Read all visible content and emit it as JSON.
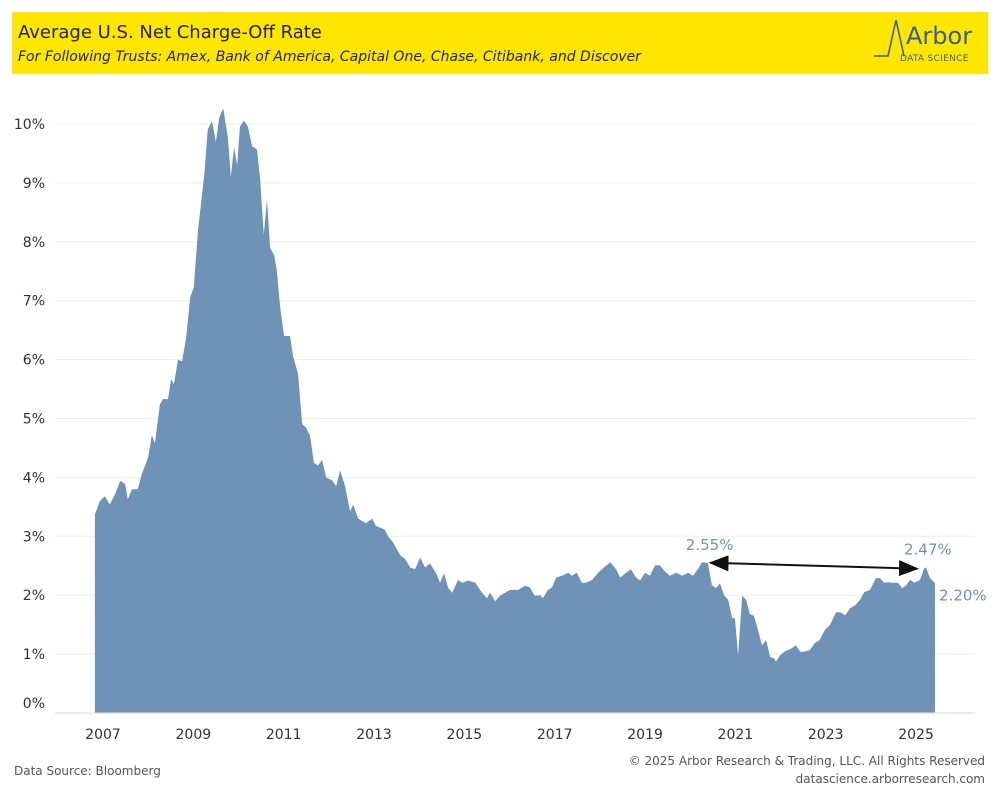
{
  "header": {
    "title": "Average U.S. Net Charge-Off Rate",
    "subtitle": "For Following Trusts: Amex, Bank of America, Capital One, Chase, Citibank, and Discover",
    "logo_text": "Arbor",
    "logo_sub": "DATA SCIENCE"
  },
  "footer": {
    "source": "Data Source: Bloomberg",
    "copyright": "© 2025 Arbor Research & Trading, LLC. All Rights Reserved",
    "url": "datascience.arborresearch.com"
  },
  "colors": {
    "area": "#6f93b6",
    "header": "#ffe600",
    "annotation": "#6f93b6",
    "logo": "#3a5f9a"
  },
  "chart_data": {
    "type": "area",
    "title": "Average U.S. Net Charge-Off Rate",
    "xlabel": "",
    "ylabel": "",
    "xlim": [
      2006.6,
      2025.8
    ],
    "ylim": [
      0,
      10.5
    ],
    "grid": true,
    "legend": "none",
    "x_ticks": [
      "2007",
      "2009",
      "2011",
      "2013",
      "2015",
      "2017",
      "2019",
      "2021",
      "2023",
      "2025"
    ],
    "y_ticks": [
      "0%",
      "1%",
      "2%",
      "3%",
      "4%",
      "5%",
      "6%",
      "7%",
      "8%",
      "9%",
      "10%"
    ],
    "points": [
      [
        2006.82,
        3.37
      ],
      [
        2006.93,
        3.6
      ],
      [
        2007.04,
        3.68
      ],
      [
        2007.15,
        3.54
      ],
      [
        2007.27,
        3.72
      ],
      [
        2007.38,
        3.94
      ],
      [
        2007.49,
        3.89
      ],
      [
        2007.55,
        3.63
      ],
      [
        2007.64,
        3.8
      ],
      [
        2007.77,
        3.8
      ],
      [
        2007.86,
        4.06
      ],
      [
        2008.0,
        4.34
      ],
      [
        2008.08,
        4.72
      ],
      [
        2008.15,
        4.58
      ],
      [
        2008.26,
        5.24
      ],
      [
        2008.33,
        5.33
      ],
      [
        2008.44,
        5.33
      ],
      [
        2008.51,
        5.67
      ],
      [
        2008.57,
        5.58
      ],
      [
        2008.66,
        6.0
      ],
      [
        2008.75,
        5.97
      ],
      [
        2008.84,
        6.36
      ],
      [
        2008.93,
        7.06
      ],
      [
        2009.01,
        7.23
      ],
      [
        2009.1,
        8.18
      ],
      [
        2009.24,
        9.13
      ],
      [
        2009.32,
        9.91
      ],
      [
        2009.41,
        10.05
      ],
      [
        2009.5,
        9.7
      ],
      [
        2009.57,
        10.1
      ],
      [
        2009.66,
        10.27
      ],
      [
        2009.77,
        9.74
      ],
      [
        2009.83,
        9.1
      ],
      [
        2009.9,
        9.6
      ],
      [
        2009.97,
        9.3
      ],
      [
        2010.03,
        9.95
      ],
      [
        2010.12,
        10.06
      ],
      [
        2010.21,
        9.95
      ],
      [
        2010.3,
        9.62
      ],
      [
        2010.41,
        9.57
      ],
      [
        2010.48,
        9.05
      ],
      [
        2010.56,
        8.12
      ],
      [
        2010.63,
        8.72
      ],
      [
        2010.7,
        7.9
      ],
      [
        2010.79,
        7.77
      ],
      [
        2010.85,
        7.5
      ],
      [
        2010.92,
        6.9
      ],
      [
        2011.01,
        6.4
      ],
      [
        2011.14,
        6.4
      ],
      [
        2011.21,
        6.05
      ],
      [
        2011.32,
        5.75
      ],
      [
        2011.41,
        4.9
      ],
      [
        2011.49,
        4.85
      ],
      [
        2011.58,
        4.72
      ],
      [
        2011.67,
        4.25
      ],
      [
        2011.76,
        4.2
      ],
      [
        2011.85,
        4.3
      ],
      [
        2011.94,
        4.0
      ],
      [
        2012.07,
        3.95
      ],
      [
        2012.16,
        3.85
      ],
      [
        2012.25,
        4.12
      ],
      [
        2012.36,
        3.85
      ],
      [
        2012.47,
        3.42
      ],
      [
        2012.54,
        3.54
      ],
      [
        2012.65,
        3.3
      ],
      [
        2012.82,
        3.22
      ],
      [
        2012.96,
        3.3
      ],
      [
        2013.04,
        3.18
      ],
      [
        2013.13,
        3.15
      ],
      [
        2013.24,
        3.11
      ],
      [
        2013.31,
        3.0
      ],
      [
        2013.42,
        2.9
      ],
      [
        2013.58,
        2.68
      ],
      [
        2013.69,
        2.61
      ],
      [
        2013.8,
        2.47
      ],
      [
        2013.91,
        2.44
      ],
      [
        2014.02,
        2.64
      ],
      [
        2014.13,
        2.47
      ],
      [
        2014.24,
        2.54
      ],
      [
        2014.37,
        2.38
      ],
      [
        2014.46,
        2.21
      ],
      [
        2014.55,
        2.37
      ],
      [
        2014.64,
        2.13
      ],
      [
        2014.73,
        2.04
      ],
      [
        2014.86,
        2.26
      ],
      [
        2014.95,
        2.21
      ],
      [
        2015.08,
        2.25
      ],
      [
        2015.24,
        2.21
      ],
      [
        2015.39,
        2.04
      ],
      [
        2015.5,
        1.95
      ],
      [
        2015.57,
        2.04
      ],
      [
        2015.68,
        1.9
      ],
      [
        2015.79,
        1.99
      ],
      [
        2015.9,
        2.04
      ],
      [
        2016.01,
        2.09
      ],
      [
        2016.19,
        2.09
      ],
      [
        2016.34,
        2.16
      ],
      [
        2016.45,
        2.13
      ],
      [
        2016.56,
        1.99
      ],
      [
        2016.68,
        2.0
      ],
      [
        2016.74,
        1.95
      ],
      [
        2016.85,
        2.09
      ],
      [
        2016.94,
        2.13
      ],
      [
        2017.03,
        2.3
      ],
      [
        2017.16,
        2.33
      ],
      [
        2017.3,
        2.38
      ],
      [
        2017.38,
        2.33
      ],
      [
        2017.49,
        2.38
      ],
      [
        2017.6,
        2.21
      ],
      [
        2017.69,
        2.21
      ],
      [
        2017.83,
        2.26
      ],
      [
        2017.96,
        2.38
      ],
      [
        2018.09,
        2.47
      ],
      [
        2018.23,
        2.56
      ],
      [
        2018.36,
        2.44
      ],
      [
        2018.45,
        2.3
      ],
      [
        2018.58,
        2.38
      ],
      [
        2018.69,
        2.44
      ],
      [
        2018.8,
        2.3
      ],
      [
        2018.89,
        2.25
      ],
      [
        2019.0,
        2.38
      ],
      [
        2019.11,
        2.33
      ],
      [
        2019.22,
        2.51
      ],
      [
        2019.33,
        2.51
      ],
      [
        2019.42,
        2.42
      ],
      [
        2019.55,
        2.33
      ],
      [
        2019.69,
        2.38
      ],
      [
        2019.82,
        2.33
      ],
      [
        2019.95,
        2.38
      ],
      [
        2020.06,
        2.33
      ],
      [
        2020.17,
        2.44
      ],
      [
        2020.26,
        2.56
      ],
      [
        2020.35,
        2.55
      ],
      [
        2020.39,
        2.55
      ],
      [
        2020.48,
        2.17
      ],
      [
        2020.57,
        2.12
      ],
      [
        2020.66,
        2.2
      ],
      [
        2020.75,
        2.0
      ],
      [
        2020.84,
        1.92
      ],
      [
        2020.93,
        1.61
      ],
      [
        2020.99,
        1.61
      ],
      [
        2021.06,
        0.98
      ],
      [
        2021.15,
        1.99
      ],
      [
        2021.24,
        1.92
      ],
      [
        2021.32,
        1.68
      ],
      [
        2021.41,
        1.65
      ],
      [
        2021.5,
        1.41
      ],
      [
        2021.59,
        1.15
      ],
      [
        2021.68,
        1.24
      ],
      [
        2021.77,
        0.95
      ],
      [
        2021.86,
        0.93
      ],
      [
        2021.9,
        0.87
      ],
      [
        2021.99,
        0.98
      ],
      [
        2022.08,
        1.04
      ],
      [
        2022.17,
        1.07
      ],
      [
        2022.25,
        1.1
      ],
      [
        2022.34,
        1.15
      ],
      [
        2022.43,
        1.04
      ],
      [
        2022.52,
        1.04
      ],
      [
        2022.65,
        1.07
      ],
      [
        2022.76,
        1.19
      ],
      [
        2022.87,
        1.24
      ],
      [
        2022.98,
        1.41
      ],
      [
        2023.09,
        1.49
      ],
      [
        2023.23,
        1.71
      ],
      [
        2023.32,
        1.71
      ],
      [
        2023.43,
        1.66
      ],
      [
        2023.54,
        1.78
      ],
      [
        2023.65,
        1.83
      ],
      [
        2023.76,
        1.92
      ],
      [
        2023.85,
        2.05
      ],
      [
        2023.98,
        2.09
      ],
      [
        2024.11,
        2.29
      ],
      [
        2024.2,
        2.29
      ],
      [
        2024.29,
        2.21
      ],
      [
        2024.38,
        2.22
      ],
      [
        2024.47,
        2.21
      ],
      [
        2024.6,
        2.21
      ],
      [
        2024.69,
        2.12
      ],
      [
        2024.78,
        2.17
      ],
      [
        2024.87,
        2.26
      ],
      [
        2024.96,
        2.21
      ],
      [
        2025.09,
        2.26
      ],
      [
        2025.18,
        2.46
      ],
      [
        2025.22,
        2.47
      ],
      [
        2025.31,
        2.29
      ],
      [
        2025.4,
        2.22
      ],
      [
        2025.42,
        2.2
      ]
    ],
    "annotations": [
      {
        "label": "2.55%",
        "x": 2020.39,
        "y": 2.55
      },
      {
        "label": "2.47%",
        "x": 2025.22,
        "y": 2.47
      },
      {
        "label": "2.20%",
        "x": 2025.42,
        "y": 2.2
      }
    ],
    "arrow": {
      "from": [
        2020.45,
        2.55
      ],
      "to": [
        2025.02,
        2.45
      ]
    }
  }
}
